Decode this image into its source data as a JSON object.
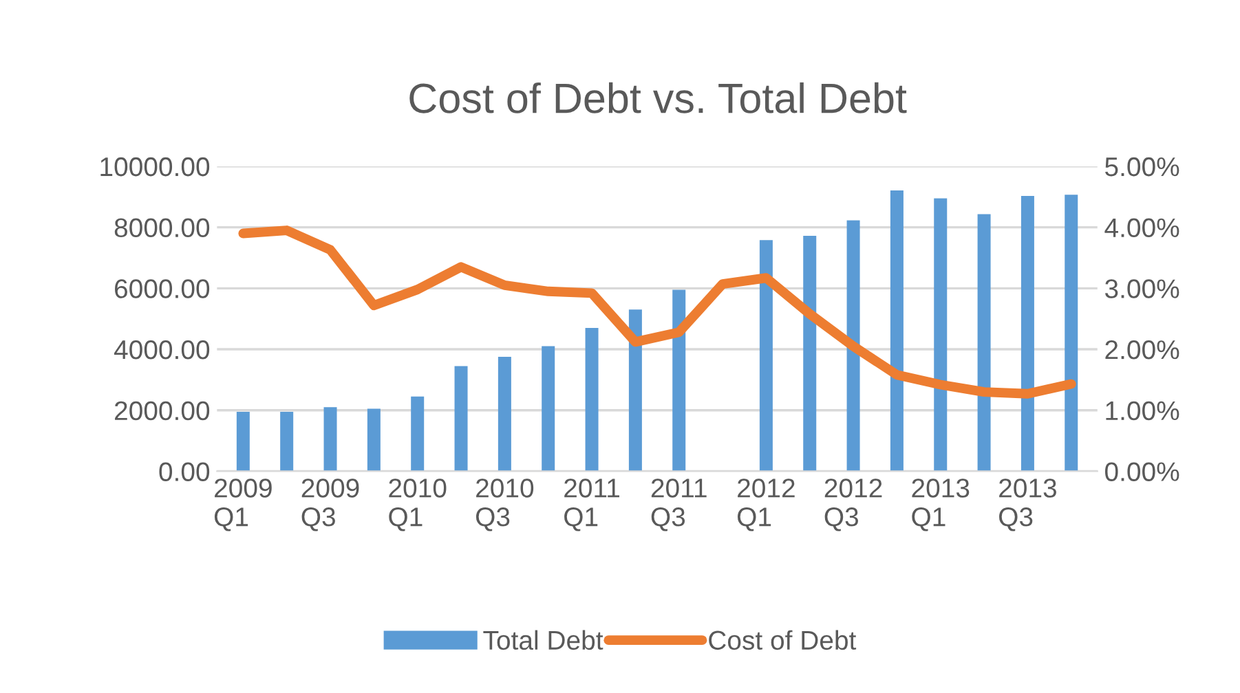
{
  "chart_data": {
    "type": "bar",
    "title": "Cost of Debt vs. Total Debt",
    "categories": [
      "2009\nQ1",
      null,
      "2009\nQ3",
      null,
      "2010\nQ1",
      null,
      "2010\nQ3",
      null,
      "2011\nQ1",
      null,
      "2011\nQ3",
      null,
      "2012\nQ1",
      null,
      "2012\nQ3",
      null,
      "2013\nQ1",
      null,
      "2013\nQ3",
      null
    ],
    "series": [
      {
        "name": "Total Debt",
        "color": "#5b9bd5",
        "values": [
          1950,
          1950,
          2100,
          2050,
          2450,
          3450,
          3750,
          4100,
          4700,
          5300,
          5950,
          null,
          7580,
          7720,
          8230,
          9210,
          8950,
          8430,
          9030,
          9070
        ]
      },
      {
        "name": "Cost of Debt",
        "type": "line",
        "axis": "y2",
        "color": "#ed7d31",
        "values": [
          3.9,
          3.95,
          3.63,
          2.72,
          2.98,
          3.35,
          3.05,
          2.95,
          2.92,
          2.12,
          2.28,
          3.07,
          3.17,
          2.58,
          2.05,
          1.58,
          1.42,
          1.3,
          1.27,
          1.43
        ]
      }
    ],
    "ylim": [
      0,
      10000
    ],
    "yticks": [
      {
        "value": 0,
        "label": "0.00"
      },
      {
        "value": 2000,
        "label": "2000.00"
      },
      {
        "value": 4000,
        "label": "4000.00"
      },
      {
        "value": 6000,
        "label": "6000.00"
      },
      {
        "value": 8000,
        "label": "8000.00"
      },
      {
        "value": 10000,
        "label": "10000.00"
      }
    ],
    "y2lim": [
      0,
      5
    ],
    "y2ticks": [
      {
        "value": 0,
        "label": "0.00%"
      },
      {
        "value": 1,
        "label": "1.00%"
      },
      {
        "value": 2,
        "label": "2.00%"
      },
      {
        "value": 3,
        "label": "3.00%"
      },
      {
        "value": 4,
        "label": "4.00%"
      },
      {
        "value": 5,
        "label": "5.00%"
      }
    ],
    "grid": "y",
    "legend": "bottom",
    "marker": "none",
    "line_style": "solid"
  }
}
